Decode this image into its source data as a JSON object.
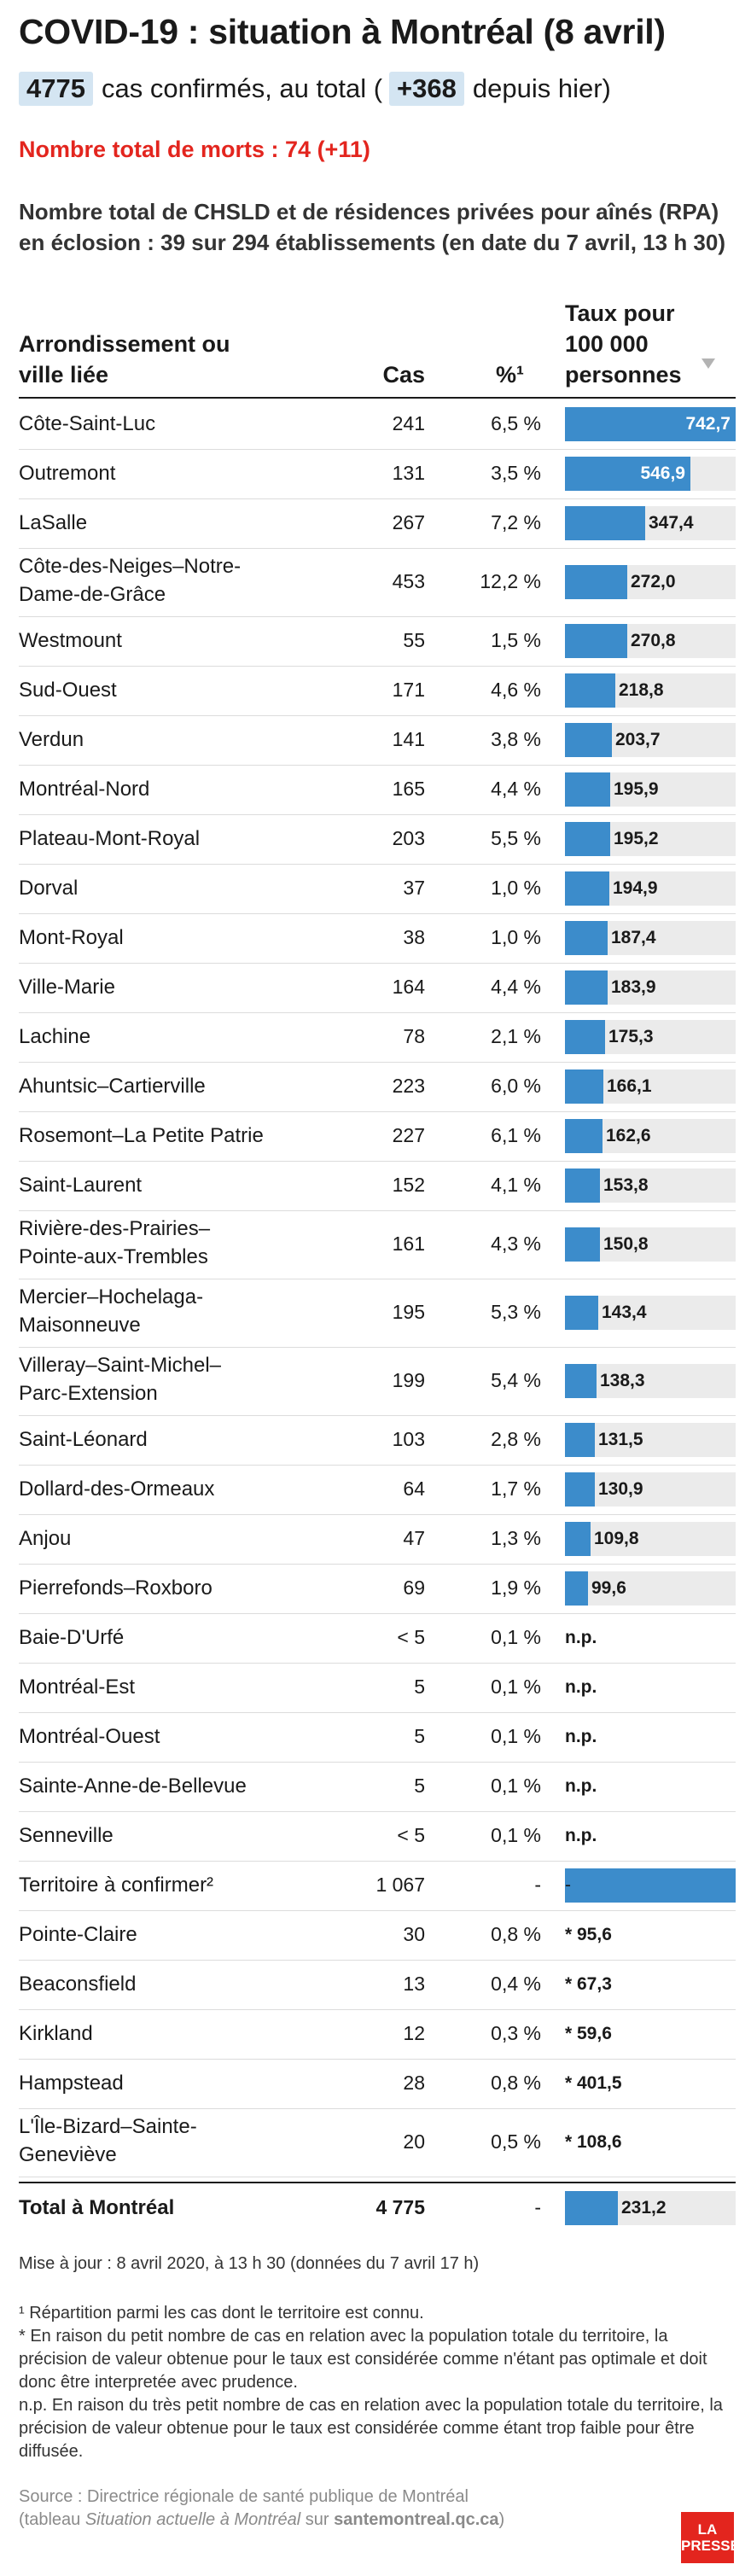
{
  "header": {
    "title": "COVID-19 : situation à Montréal (8 avril)",
    "cases_pill": "4775",
    "cases_text": "cas confirmés, au total (",
    "cases_new_pill": "+368",
    "cases_after": "depuis hier)",
    "deaths": "Nombre total de morts : 74 (+11)",
    "intro": "Nombre total de CHSLD et de résidences privées pour aînés (RPA) en éclosion : 39 sur 294 établissements (en date du 7 avril, 13 h 30)"
  },
  "columns": {
    "name": "Arrondissement ou ville liée",
    "cases": "Cas",
    "pct": "%¹",
    "rate": "Taux pour 100 000 personnes",
    "sort_icon": "sort-down-triangle"
  },
  "colors": {
    "bar": "#3c8ccb",
    "track": "#ebebeb",
    "accent": "#e3251e",
    "pill": "#d4e5f2"
  },
  "chart_data": {
    "type": "bar",
    "orientation": "horizontal",
    "xlim": [
      0,
      742.7
    ],
    "rows": [
      {
        "name": "Côte-Saint-Luc",
        "cases": "241",
        "pct": "6,5 %",
        "rate": 742.7,
        "label": "742,7"
      },
      {
        "name": "Outremont",
        "cases": "131",
        "pct": "3,5 %",
        "rate": 546.9,
        "label": "546,9"
      },
      {
        "name": "LaSalle",
        "cases": "267",
        "pct": "7,2 %",
        "rate": 347.4,
        "label": "347,4"
      },
      {
        "name": "Côte-des-Neiges–Notre-Dame-de-Grâce",
        "cases": "453",
        "pct": "12,2 %",
        "rate": 272.0,
        "label": "272,0"
      },
      {
        "name": "Westmount",
        "cases": "55",
        "pct": "1,5 %",
        "rate": 270.8,
        "label": "270,8"
      },
      {
        "name": "Sud-Ouest",
        "cases": "171",
        "pct": "4,6 %",
        "rate": 218.8,
        "label": "218,8"
      },
      {
        "name": "Verdun",
        "cases": "141",
        "pct": "3,8 %",
        "rate": 203.7,
        "label": "203,7"
      },
      {
        "name": "Montréal-Nord",
        "cases": "165",
        "pct": "4,4 %",
        "rate": 195.9,
        "label": "195,9"
      },
      {
        "name": "Plateau-Mont-Royal",
        "cases": "203",
        "pct": "5,5 %",
        "rate": 195.2,
        "label": "195,2"
      },
      {
        "name": "Dorval",
        "cases": "37",
        "pct": "1,0 %",
        "rate": 194.9,
        "label": "194,9"
      },
      {
        "name": "Mont-Royal",
        "cases": "38",
        "pct": "1,0 %",
        "rate": 187.4,
        "label": "187,4"
      },
      {
        "name": "Ville-Marie",
        "cases": "164",
        "pct": "4,4 %",
        "rate": 183.9,
        "label": "183,9"
      },
      {
        "name": "Lachine",
        "cases": "78",
        "pct": "2,1 %",
        "rate": 175.3,
        "label": "175,3"
      },
      {
        "name": "Ahuntsic–Cartierville",
        "cases": "223",
        "pct": "6,0 %",
        "rate": 166.1,
        "label": "166,1"
      },
      {
        "name": "Rosemont–La Petite Patrie",
        "cases": "227",
        "pct": "6,1 %",
        "rate": 162.6,
        "label": "162,6"
      },
      {
        "name": "Saint-Laurent",
        "cases": "152",
        "pct": "4,1 %",
        "rate": 153.8,
        "label": "153,8"
      },
      {
        "name": "Rivière-des-Prairies–Pointe-aux-Trembles",
        "cases": "161",
        "pct": "4,3 %",
        "rate": 150.8,
        "label": "150,8"
      },
      {
        "name": "Mercier–Hochelaga-Maisonneuve",
        "cases": "195",
        "pct": "5,3 %",
        "rate": 143.4,
        "label": "143,4"
      },
      {
        "name": "Villeray–Saint-Michel–Parc-Extension",
        "cases": "199",
        "pct": "5,4 %",
        "rate": 138.3,
        "label": "138,3"
      },
      {
        "name": "Saint-Léonard",
        "cases": "103",
        "pct": "2,8 %",
        "rate": 131.5,
        "label": "131,5"
      },
      {
        "name": "Dollard-des-Ormeaux",
        "cases": "64",
        "pct": "1,7 %",
        "rate": 130.9,
        "label": "130,9"
      },
      {
        "name": "Anjou",
        "cases": "47",
        "pct": "1,3 %",
        "rate": 109.8,
        "label": "109,8"
      },
      {
        "name": "Pierrefonds–Roxboro",
        "cases": "69",
        "pct": "1,9 %",
        "rate": 99.6,
        "label": "99,6"
      },
      {
        "name": "Baie-D'Urfé",
        "cases": "< 5",
        "pct": "0,1 %",
        "rate": null,
        "label": "n.p."
      },
      {
        "name": "Montréal-Est",
        "cases": "5",
        "pct": "0,1 %",
        "rate": null,
        "label": "n.p."
      },
      {
        "name": "Montréal-Ouest",
        "cases": "5",
        "pct": "0,1 %",
        "rate": null,
        "label": "n.p."
      },
      {
        "name": "Sainte-Anne-de-Bellevue",
        "cases": "5",
        "pct": "0,1 %",
        "rate": null,
        "label": "n.p."
      },
      {
        "name": "Senneville",
        "cases": "< 5",
        "pct": "0,1 %",
        "rate": null,
        "label": "n.p."
      },
      {
        "name": "Territoire à confirmer²",
        "cases": "1 067",
        "pct": "-",
        "rate": 742.7,
        "label": "-",
        "full": true
      },
      {
        "name": "Pointe-Claire",
        "cases": "30",
        "pct": "0,8 %",
        "rate": null,
        "label": "* 95,6"
      },
      {
        "name": "Beaconsfield",
        "cases": "13",
        "pct": "0,4 %",
        "rate": null,
        "label": "* 67,3"
      },
      {
        "name": "Kirkland",
        "cases": "12",
        "pct": "0,3 %",
        "rate": null,
        "label": "* 59,6"
      },
      {
        "name": "Hampstead",
        "cases": "28",
        "pct": "0,8 %",
        "rate": null,
        "label": "* 401,5"
      },
      {
        "name": "L'Île-Bizard–Sainte-Geneviève",
        "cases": "20",
        "pct": "0,5 %",
        "rate": null,
        "label": "* 108,6"
      }
    ],
    "total": {
      "name": "Total à Montréal",
      "cases": "4 775",
      "pct": "-",
      "rate": 231.2,
      "label": "231,2"
    }
  },
  "footer": {
    "updated": "Mise à jour : 8 avril 2020, à 13 h 30 (données du 7 avril 17 h)",
    "note1": "¹ Répartition parmi les cas dont le territoire est connu.",
    "note2": "* En raison du petit nombre de cas en relation avec la population totale du territoire, la précision de valeur obtenue pour le taux est considérée comme n'étant pas optimale et doit donc être interpretée avec prudence.",
    "note3": "n.p. En raison du très petit nombre de cas en relation avec la population totale du territoire, la précision de valeur obtenue pour le taux est considérée comme étant trop faible pour être diffusée.",
    "source_line1": "Source : Directrice régionale de santé publique de Montréal",
    "source_prefix": "(tableau ",
    "source_italic": "Situation actuelle à Montréal",
    "source_mid": " sur ",
    "source_link": "santemontreal.qc.ca",
    "source_suffix": ")",
    "logo_line1": "LA",
    "logo_line2": "PRESSE"
  }
}
